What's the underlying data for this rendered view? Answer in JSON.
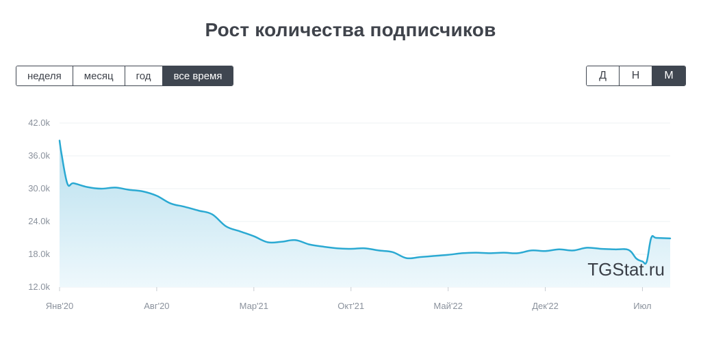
{
  "title": "Рост количества подписчиков",
  "period_buttons": [
    {
      "label": "неделя",
      "active": false
    },
    {
      "label": "месяц",
      "active": false
    },
    {
      "label": "год",
      "active": false
    },
    {
      "label": "все время",
      "active": true
    }
  ],
  "granularity_buttons": [
    {
      "label": "Д",
      "active": false
    },
    {
      "label": "Н",
      "active": false
    },
    {
      "label": "М",
      "active": true
    }
  ],
  "watermark": "TGStat.ru",
  "colors": {
    "line": "#2aa9d2",
    "fill_top": "#b7dfee",
    "fill_bottom": "#eef8fc",
    "grid": "#eef0f3",
    "button_active": "#3f4650"
  },
  "chart_data": {
    "type": "area",
    "title": "Рост количества подписчиков",
    "xlabel": "",
    "ylabel": "",
    "ylim": [
      12000,
      42000
    ],
    "yticks": [
      12000,
      18000,
      24000,
      30000,
      36000,
      42000
    ],
    "ytick_labels": [
      "12.0k",
      "18.0k",
      "24.0k",
      "30.0k",
      "36.0k",
      "42.0k"
    ],
    "xlim": [
      "2020-01",
      "2023-09"
    ],
    "xticks": [
      "2020-01",
      "2020-08",
      "2021-03",
      "2021-10",
      "2022-05",
      "2022-12",
      "2023-07"
    ],
    "xtick_labels": [
      "Янв'20",
      "Авг'20",
      "Мар'21",
      "Окт'21",
      "Май'22",
      "Дек'22",
      "Июл"
    ],
    "grid": true,
    "series": [
      {
        "x": [
          "2020-01",
          "2020-01-05",
          "2020-01-18",
          "2020-02",
          "2020-03",
          "2020-04",
          "2020-05",
          "2020-06",
          "2020-07",
          "2020-08",
          "2020-09",
          "2020-10",
          "2020-11",
          "2020-12",
          "2021-01",
          "2021-02",
          "2021-03",
          "2021-04",
          "2021-05",
          "2021-06",
          "2021-07",
          "2021-08",
          "2021-09",
          "2021-10",
          "2021-11",
          "2021-12",
          "2022-01",
          "2022-02",
          "2022-03",
          "2022-04",
          "2022-05",
          "2022-06",
          "2022-07",
          "2022-08",
          "2022-09",
          "2022-10",
          "2022-11",
          "2022-12",
          "2023-01",
          "2023-02",
          "2023-03",
          "2023-04",
          "2023-05",
          "2023-06",
          "2023-06-18",
          "2023-07",
          "2023-07-10",
          "2023-07-20",
          "2023-08",
          "2023-09"
        ],
        "values": [
          38800,
          36500,
          30900,
          31000,
          30300,
          30000,
          30200,
          29800,
          29500,
          28700,
          27300,
          26700,
          26000,
          25300,
          23100,
          22200,
          21300,
          20200,
          20300,
          20600,
          19800,
          19400,
          19100,
          19000,
          19100,
          18700,
          18400,
          17300,
          17500,
          17700,
          17900,
          18200,
          18300,
          18200,
          18300,
          18200,
          18700,
          18600,
          18900,
          18700,
          19200,
          19000,
          18900,
          18800,
          17200,
          16700,
          16600,
          21000,
          21000,
          20900
        ]
      }
    ]
  }
}
